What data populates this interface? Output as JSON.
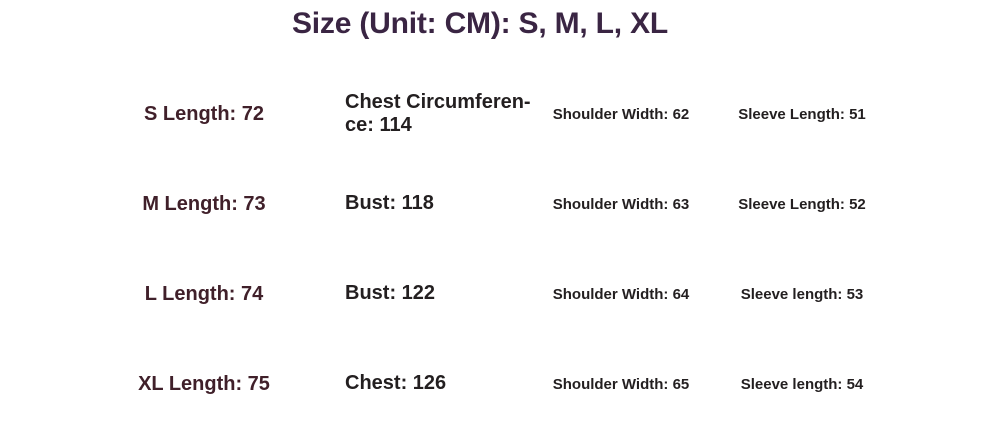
{
  "title": "Size (Unit: CM): S, M, L, XL",
  "colors": {
    "title": "#3a2543",
    "size_label": "#40202a",
    "measurement": "#231f20",
    "background": "#ffffff"
  },
  "size_table": {
    "rows": [
      {
        "length_label": "S Length: 72",
        "girth_label": "Chest Circumferen-\nce: 114",
        "shoulder_label": "Shoulder Width: 62",
        "sleeve_label": "Sleeve Length: 51"
      },
      {
        "length_label": "M Length: 73",
        "girth_label": "Bust: 118",
        "shoulder_label": "Shoulder Width: 63",
        "sleeve_label": "Sleeve Length: 52"
      },
      {
        "length_label": "L Length: 74",
        "girth_label": "Bust: 122",
        "shoulder_label": "Shoulder Width: 64",
        "sleeve_label": "Sleeve length: 53"
      },
      {
        "length_label": "XL Length: 75",
        "girth_label": "Chest: 126",
        "shoulder_label": "Shoulder Width: 65",
        "sleeve_label": "Sleeve length: 54"
      }
    ]
  }
}
